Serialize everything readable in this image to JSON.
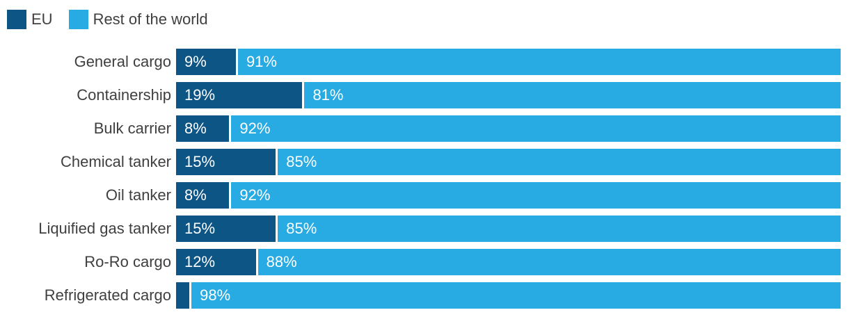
{
  "chart_data": {
    "type": "bar",
    "orientation": "horizontal",
    "stacked": true,
    "value_unit": "%",
    "title": "",
    "xlabel": "",
    "ylabel": "",
    "xlim": [
      0,
      100
    ],
    "grid": false,
    "legend_position": "top-left",
    "categories": [
      "General cargo",
      "Containership",
      "Bulk carrier",
      "Chemical tanker",
      "Oil tanker",
      "Liquified gas tanker",
      "Ro-Ro cargo",
      "Refrigerated cargo"
    ],
    "series": [
      {
        "name": "EU",
        "color": "#0d5585",
        "values": [
          9,
          19,
          8,
          15,
          8,
          15,
          12,
          2
        ]
      },
      {
        "name": "Rest of the world",
        "color": "#27abe2",
        "values": [
          91,
          81,
          92,
          85,
          92,
          85,
          88,
          98
        ]
      }
    ],
    "value_labels": "white text inside start of each segment; EU label omitted on Refrigerated cargo (segment too narrow)"
  },
  "legend": {
    "items": [
      {
        "label": "EU",
        "color": "#0d5585"
      },
      {
        "label": "Rest of the world",
        "color": "#27abe2"
      }
    ]
  },
  "rows": [
    {
      "category": "General cargo",
      "eu_pct": 9,
      "rest_pct": 91,
      "eu_label": "9%",
      "rest_label": "91%"
    },
    {
      "category": "Containership",
      "eu_pct": 19,
      "rest_pct": 81,
      "eu_label": "19%",
      "rest_label": "81%"
    },
    {
      "category": "Bulk carrier",
      "eu_pct": 8,
      "rest_pct": 92,
      "eu_label": "8%",
      "rest_label": "92%"
    },
    {
      "category": "Chemical tanker",
      "eu_pct": 15,
      "rest_pct": 85,
      "eu_label": "15%",
      "rest_label": "85%"
    },
    {
      "category": "Oil tanker",
      "eu_pct": 8,
      "rest_pct": 92,
      "eu_label": "8%",
      "rest_label": "92%"
    },
    {
      "category": "Liquified gas tanker",
      "eu_pct": 15,
      "rest_pct": 85,
      "eu_label": "15%",
      "rest_label": "85%"
    },
    {
      "category": "Ro-Ro cargo",
      "eu_pct": 12,
      "rest_pct": 88,
      "eu_label": "12%",
      "rest_label": "88%"
    },
    {
      "category": "Refrigerated cargo",
      "eu_pct": 2,
      "rest_pct": 98,
      "eu_label": "",
      "rest_label": "98%"
    }
  ],
  "colors": {
    "eu": "#0d5585",
    "rest_of_world": "#27abe2",
    "category_text": "#3f3f3f",
    "bar_value_text": "#ffffff",
    "background": "#ffffff"
  }
}
